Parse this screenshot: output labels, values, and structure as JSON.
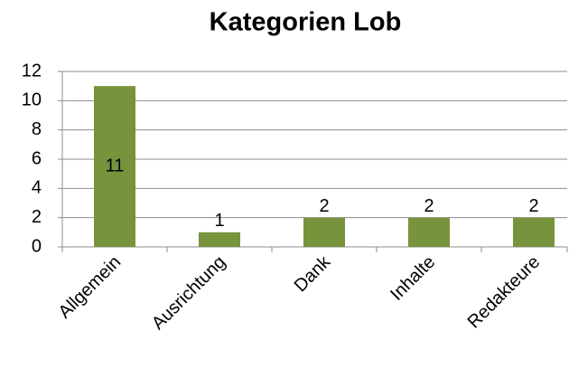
{
  "chart_data": {
    "type": "bar",
    "title": "Kategorien Lob",
    "categories": [
      "Allgemein",
      "Ausrichtung",
      "Dank",
      "Inhalte",
      "Redakteure"
    ],
    "values": [
      11,
      1,
      2,
      2,
      2
    ],
    "color": "#77933c",
    "ylim": [
      0,
      12
    ],
    "yticks": [
      0,
      2,
      4,
      6,
      8,
      10,
      12
    ],
    "grid": true
  }
}
